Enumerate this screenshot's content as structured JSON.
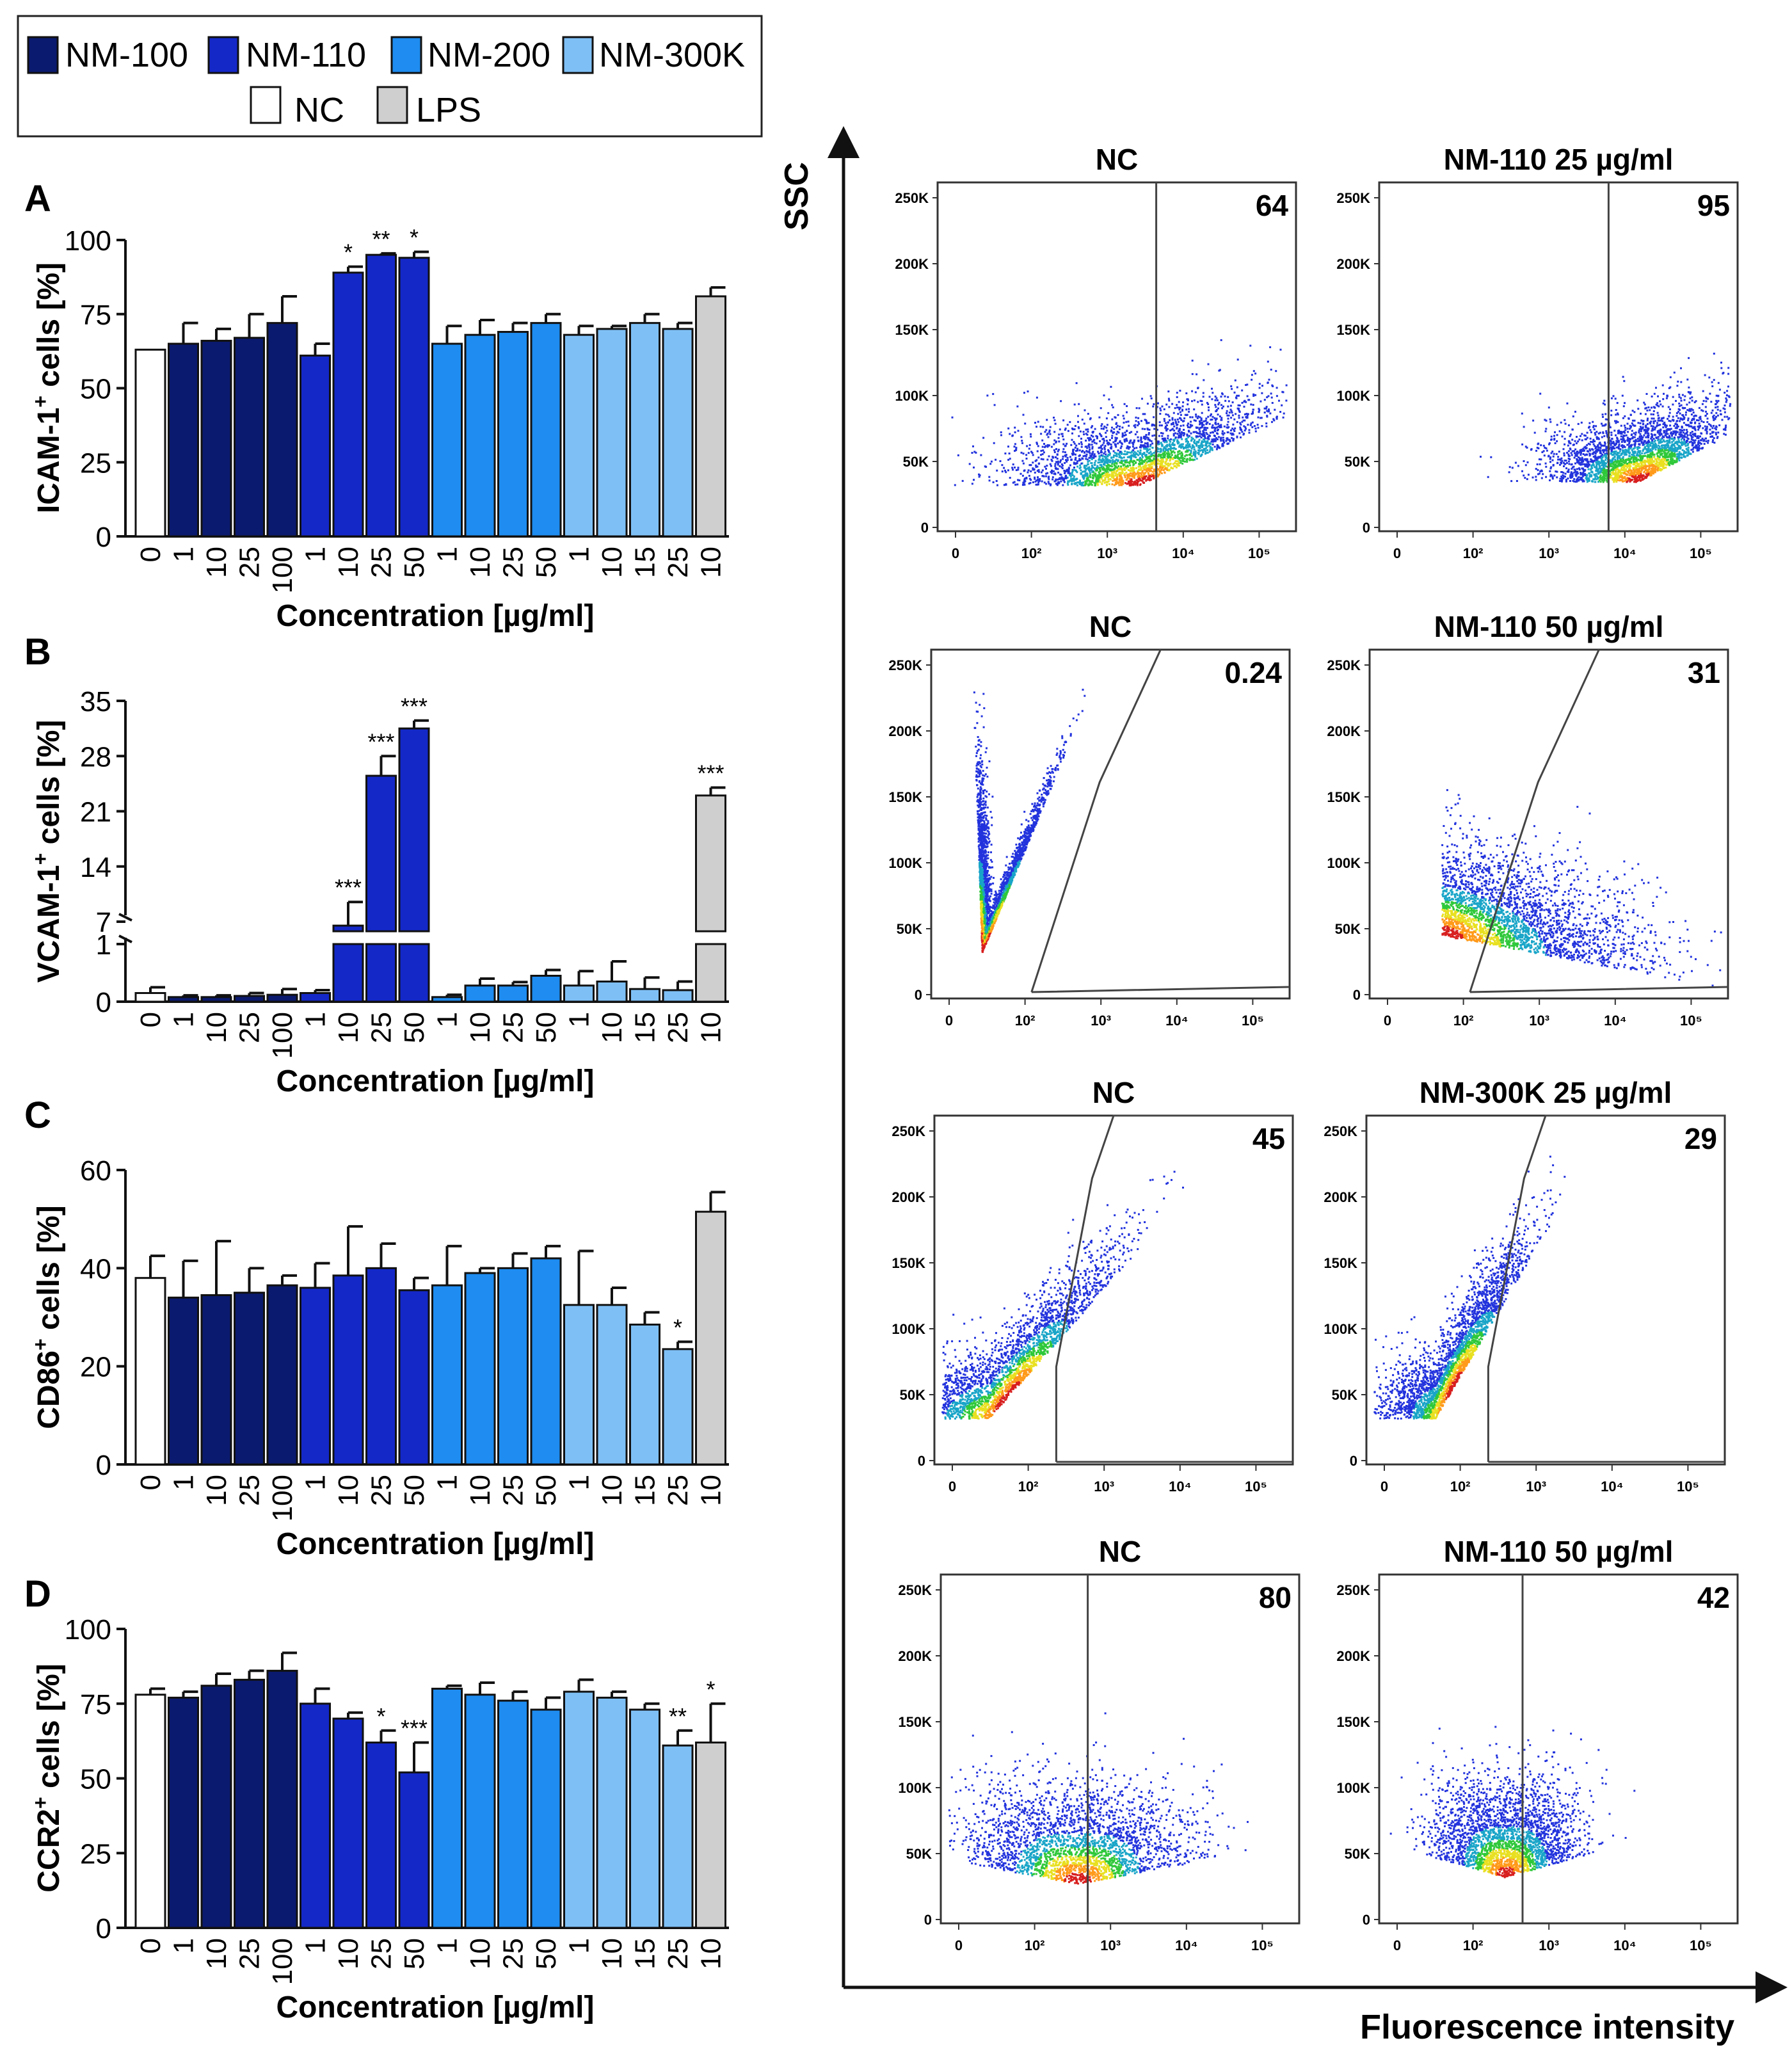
{
  "legend": {
    "items": [
      {
        "label": "NM-100",
        "color": "#0a1a6e"
      },
      {
        "label": "NM-110",
        "color": "#1428c8"
      },
      {
        "label": "NM-200",
        "color": "#1e8cf0"
      },
      {
        "label": "NM-300K",
        "color": "#7ec0f6"
      },
      {
        "label": "NC",
        "color": "#ffffff"
      },
      {
        "label": "LPS",
        "color": "#cfcfcf"
      }
    ]
  },
  "chart_data": [
    {
      "type": "bar",
      "panel": "A",
      "ylabel": "ICAM-1+ cells [%]",
      "xlabel": "Concentration [µg/ml]",
      "yticks": [
        0,
        25,
        50,
        75,
        100
      ],
      "ylim": [
        0,
        100
      ],
      "categories": [
        "0",
        "1",
        "10",
        "25",
        "100",
        "1",
        "10",
        "25",
        "50",
        "1",
        "10",
        "25",
        "50",
        "1",
        "10",
        "15",
        "25",
        "10"
      ],
      "groups": [
        "NC",
        "NM-100",
        "NM-100",
        "NM-100",
        "NM-100",
        "NM-110",
        "NM-110",
        "NM-110",
        "NM-110",
        "NM-200",
        "NM-200",
        "NM-200",
        "NM-200",
        "NM-300K",
        "NM-300K",
        "NM-300K",
        "NM-300K",
        "LPS"
      ],
      "values": [
        63,
        65,
        66,
        67,
        72,
        61,
        89,
        95,
        94,
        65,
        68,
        69,
        72,
        68,
        70,
        72,
        70,
        81
      ],
      "errors": [
        0,
        7,
        4,
        8,
        9,
        4,
        2,
        0.5,
        2,
        6,
        5,
        3,
        3,
        3,
        1,
        3,
        2,
        3
      ],
      "annotations": [
        "",
        "",
        "",
        "",
        "",
        "",
        "*",
        "**",
        "*",
        "",
        "",
        "",
        "",
        "",
        "",
        "",
        "",
        ""
      ]
    },
    {
      "type": "bar",
      "panel": "B",
      "ylabel": "VCAM-1+ cells [%]",
      "xlabel": "Concentration [µg/ml]",
      "yticks_lower": [
        0,
        1
      ],
      "yticks_upper": [
        7,
        14,
        21,
        28,
        35
      ],
      "broken_axis": true,
      "categories": [
        "0",
        "1",
        "10",
        "25",
        "100",
        "1",
        "10",
        "25",
        "50",
        "1",
        "10",
        "25",
        "50",
        "1",
        "10",
        "15",
        "25",
        "10"
      ],
      "groups": [
        "NC",
        "NM-100",
        "NM-100",
        "NM-100",
        "NM-100",
        "NM-110",
        "NM-110",
        "NM-110",
        "NM-110",
        "NM-200",
        "NM-200",
        "NM-200",
        "NM-200",
        "NM-300K",
        "NM-300K",
        "NM-300K",
        "NM-300K",
        "LPS"
      ],
      "values": [
        0.15,
        0.08,
        0.08,
        0.1,
        0.12,
        0.15,
        6.5,
        25.5,
        31.5,
        0.08,
        0.28,
        0.28,
        0.45,
        0.28,
        0.35,
        0.22,
        0.2,
        23
      ],
      "errors": [
        0.1,
        0.03,
        0.03,
        0.05,
        0.1,
        0.05,
        3,
        2.5,
        1,
        0.04,
        0.12,
        0.06,
        0.1,
        0.25,
        0.35,
        0.2,
        0.15,
        1
      ],
      "annotations": [
        "",
        "",
        "",
        "",
        "",
        "",
        "***",
        "***",
        "***",
        "",
        "",
        "",
        "",
        "",
        "",
        "",
        "",
        "***"
      ]
    },
    {
      "type": "bar",
      "panel": "C",
      "ylabel": "CD86+ cells [%]",
      "xlabel": "Concentration [µg/ml]",
      "yticks": [
        0,
        20,
        40,
        60
      ],
      "ylim": [
        0,
        60
      ],
      "categories": [
        "0",
        "1",
        "10",
        "25",
        "100",
        "1",
        "10",
        "25",
        "50",
        "1",
        "10",
        "25",
        "50",
        "1",
        "10",
        "15",
        "25",
        "10"
      ],
      "groups": [
        "NC",
        "NM-100",
        "NM-100",
        "NM-100",
        "NM-100",
        "NM-110",
        "NM-110",
        "NM-110",
        "NM-110",
        "NM-200",
        "NM-200",
        "NM-200",
        "NM-200",
        "NM-300K",
        "NM-300K",
        "NM-300K",
        "NM-300K",
        "LPS"
      ],
      "values": [
        38,
        34,
        34.5,
        35,
        36.5,
        36,
        38.5,
        40,
        35.5,
        36.5,
        39,
        40,
        42,
        32.5,
        32.5,
        28.5,
        23.5,
        51.5
      ],
      "errors": [
        4.5,
        7.5,
        11,
        5,
        2,
        5,
        10,
        5,
        2.5,
        8,
        1,
        3,
        2.5,
        11,
        3.5,
        2.5,
        1.5,
        4
      ],
      "annotations": [
        "",
        "",
        "",
        "",
        "",
        "",
        "",
        "",
        "",
        "",
        "",
        "",
        "",
        "",
        "",
        "",
        "*",
        ""
      ]
    },
    {
      "type": "bar",
      "panel": "D",
      "ylabel": "CCR2+ cells [%]",
      "xlabel": "Concentration [µg/ml]",
      "yticks": [
        0,
        25,
        50,
        75,
        100
      ],
      "ylim": [
        0,
        100
      ],
      "categories": [
        "0",
        "1",
        "10",
        "25",
        "100",
        "1",
        "10",
        "25",
        "50",
        "1",
        "10",
        "25",
        "50",
        "1",
        "10",
        "15",
        "25",
        "10"
      ],
      "groups": [
        "NC",
        "NM-100",
        "NM-100",
        "NM-100",
        "NM-100",
        "NM-110",
        "NM-110",
        "NM-110",
        "NM-110",
        "NM-200",
        "NM-200",
        "NM-200",
        "NM-200",
        "NM-300K",
        "NM-300K",
        "NM-300K",
        "NM-300K",
        "LPS"
      ],
      "values": [
        78,
        77,
        81,
        83,
        86,
        75,
        70,
        62,
        52,
        80,
        78,
        76,
        73,
        79,
        77,
        73,
        61,
        62
      ],
      "errors": [
        2,
        2,
        4,
        3,
        6,
        5,
        2,
        4,
        10,
        1,
        4,
        3,
        4,
        4,
        2,
        2,
        5,
        13
      ],
      "annotations": [
        "",
        "",
        "",
        "",
        "",
        "",
        "",
        "*",
        "***",
        "",
        "",
        "",
        "",
        "",
        "",
        "",
        "**",
        "*"
      ]
    },
    {
      "type": "scatter",
      "kind": "flow-cytometry-grid",
      "xaxis_label": "Fluorescence intensity",
      "yaxis_label": "SSC",
      "yticks": [
        "0",
        "50K",
        "100K",
        "150K",
        "200K",
        "250K"
      ],
      "xticks": [
        "0",
        "10²",
        "10³",
        "10⁴",
        "10⁵"
      ],
      "plots": [
        {
          "title": "NC",
          "percent": "64"
        },
        {
          "title": "NM-110  25 µg/ml",
          "percent": "95"
        },
        {
          "title": "NC",
          "percent": "0.24"
        },
        {
          "title": "NM-110  50 µg/ml",
          "percent": "31"
        },
        {
          "title": "NC",
          "percent": "45"
        },
        {
          "title": "NM-300K  25 µg/ml",
          "percent": "29"
        },
        {
          "title": "NC",
          "percent": "80"
        },
        {
          "title": "NM-110  50 µg/ml",
          "percent": "42"
        }
      ]
    }
  ]
}
